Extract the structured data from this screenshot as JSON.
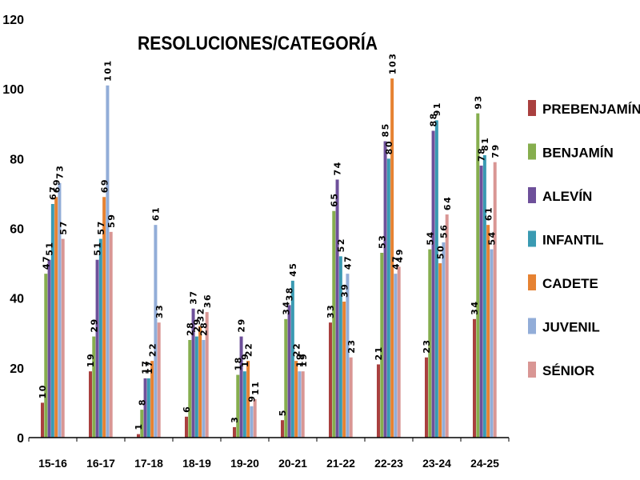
{
  "colors": [
    "#a9403f",
    "#86ae4e",
    "#6e509a",
    "#3a9ab2",
    "#e68232",
    "#92add8",
    "#d99694"
  ],
  "chart_data": {
    "type": "bar",
    "title": "RESOLUCIONES/CATEGORÍA",
    "xlabel": "",
    "ylabel": "",
    "ylim": [
      0,
      120
    ],
    "yticks": [
      0,
      20,
      40,
      60,
      80,
      100,
      120
    ],
    "grid": false,
    "legend_position": "right",
    "categories": [
      "15-16",
      "16-17",
      "17-18",
      "18-19",
      "19-20",
      "20-21",
      "21-22",
      "22-23",
      "23-24",
      "24-25"
    ],
    "series": [
      {
        "name": "PREBENJAMÍN",
        "values": [
          10,
          19,
          1,
          6,
          3,
          5,
          33,
          21,
          23,
          34
        ]
      },
      {
        "name": "BENJAMÍN",
        "values": [
          47,
          29,
          8,
          28,
          18,
          34,
          65,
          53,
          54,
          93
        ]
      },
      {
        "name": "ALEVÍN",
        "values": [
          51,
          51,
          17,
          37,
          29,
          38,
          74,
          85,
          88,
          78
        ]
      },
      {
        "name": "INFANTIL",
        "values": [
          67,
          57,
          17,
          29,
          19,
          45,
          52,
          80,
          91,
          81
        ]
      },
      {
        "name": "CADETE",
        "values": [
          69,
          69,
          22,
          32,
          22,
          22,
          39,
          103,
          50,
          61
        ]
      },
      {
        "name": "JUVENIL",
        "values": [
          73,
          101,
          61,
          28,
          9,
          19,
          47,
          47,
          56,
          54
        ]
      },
      {
        "name": "SÉNIOR",
        "values": [
          57,
          59,
          33,
          36,
          11,
          19,
          23,
          49,
          64,
          79
        ]
      }
    ]
  }
}
